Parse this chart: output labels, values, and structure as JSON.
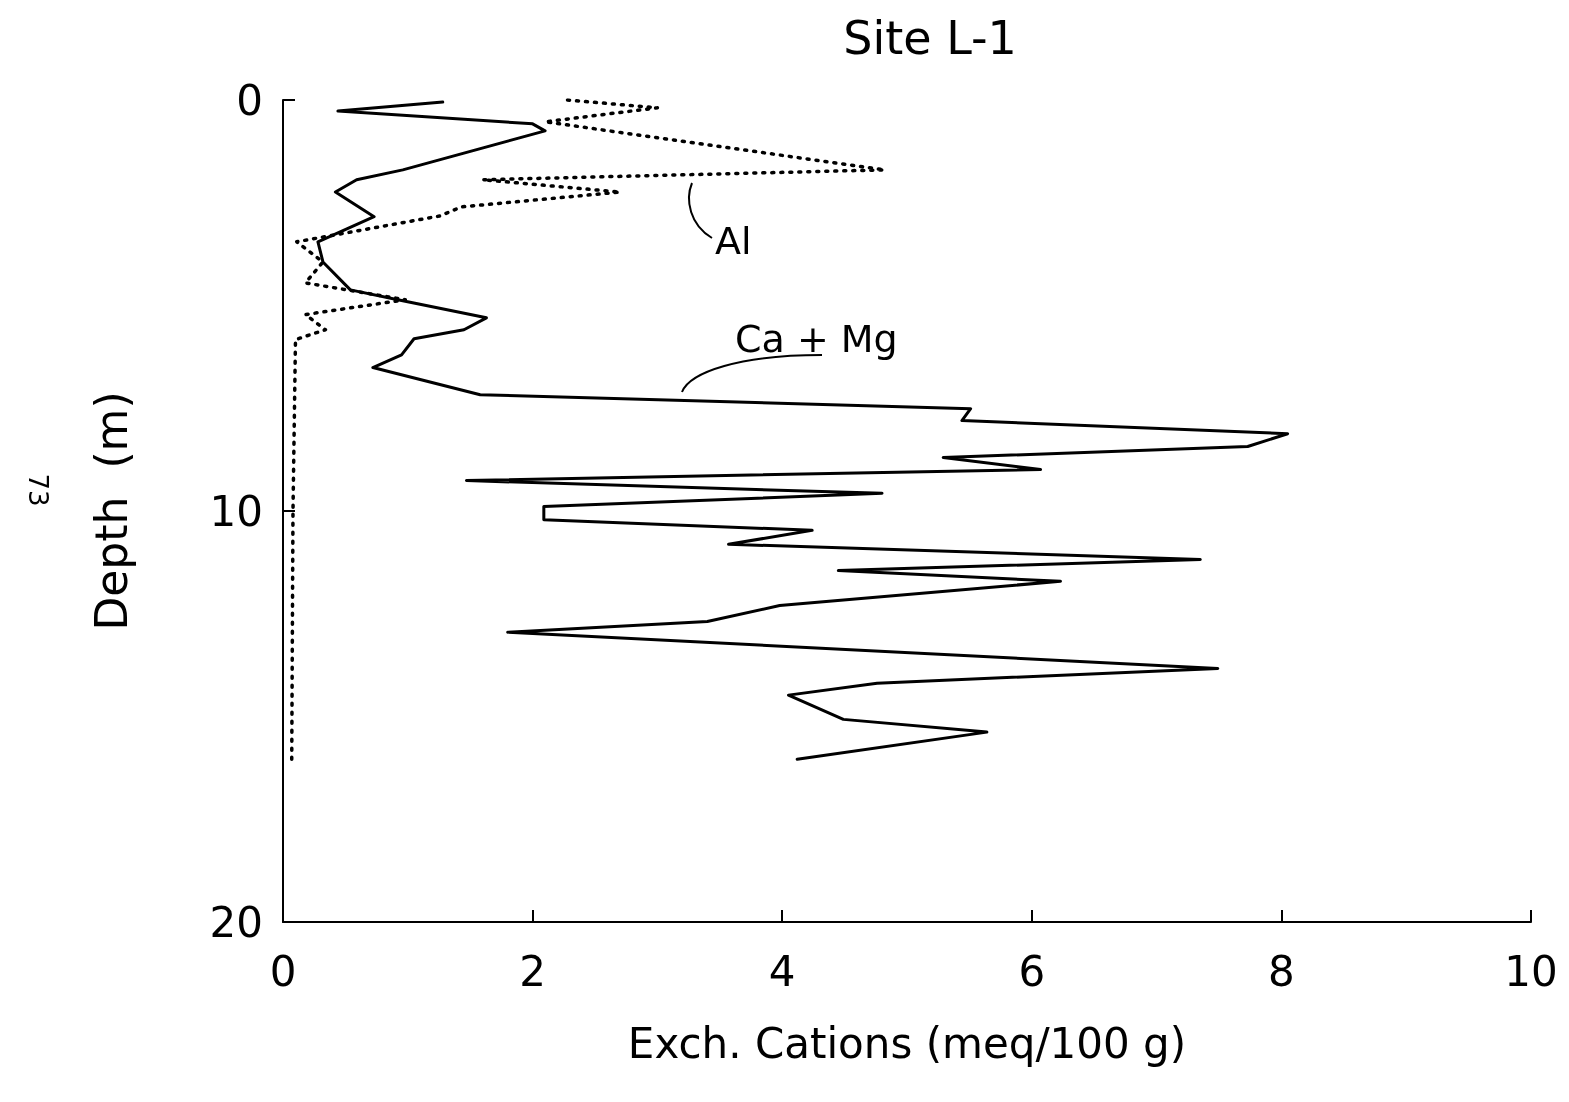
{
  "chart_data": {
    "type": "line",
    "title": "Site L-1",
    "xlabel": "Exch. Cations (meq/100 g)",
    "ylabel": "Depth  (m)",
    "annotations": [
      "73"
    ],
    "xlim": [
      0,
      10
    ],
    "xticks": [
      0,
      2,
      4,
      6,
      8,
      10
    ],
    "ylim": [
      20,
      0
    ],
    "yticks": [
      0,
      10,
      20
    ],
    "grid": false,
    "legend": false,
    "marker": "none",
    "series": [
      {
        "name": "Ca + Mg",
        "color": "#000000",
        "line_style": "solid",
        "x": [
          1.28,
          0.44,
          2.0,
          2.1,
          0.96,
          0.59,
          0.42,
          0.73,
          0.28,
          0.32,
          0.54,
          0.92,
          1.63,
          1.45,
          1.05,
          0.95,
          0.72,
          1.58,
          5.51,
          5.44,
          8.05,
          7.73,
          5.29,
          6.07,
          1.47,
          4.8,
          2.09,
          2.09,
          4.24,
          3.57,
          7.35,
          4.45,
          6.23,
          3.98,
          3.4,
          1.8,
          7.49,
          4.76,
          4.05,
          4.49,
          5.64,
          4.12
        ],
        "values": [
          0.05,
          0.27,
          0.58,
          0.75,
          1.7,
          1.94,
          2.24,
          2.84,
          3.45,
          3.94,
          4.62,
          4.86,
          5.3,
          5.59,
          5.81,
          6.2,
          6.51,
          7.17,
          7.51,
          7.8,
          8.12,
          8.43,
          8.7,
          8.99,
          9.26,
          9.57,
          9.89,
          10.21,
          10.47,
          10.81,
          11.18,
          11.45,
          11.71,
          12.3,
          12.69,
          12.95,
          13.83,
          14.19,
          14.48,
          15.07,
          15.38,
          16.04
        ]
      },
      {
        "name": "Al",
        "color": "#000000",
        "line_style": "dotted",
        "x": [
          2.28,
          3.0,
          2.1,
          4.82,
          1.6,
          2.7,
          1.43,
          1.26,
          0.11,
          0.32,
          0.18,
          0.98,
          0.18,
          0.34,
          0.1,
          0.08,
          0.07
        ],
        "values": [
          0.0,
          0.19,
          0.53,
          1.7,
          1.94,
          2.24,
          2.6,
          2.82,
          3.45,
          3.94,
          4.45,
          4.86,
          5.22,
          5.59,
          5.83,
          10.0,
          16.04
        ]
      }
    ]
  }
}
